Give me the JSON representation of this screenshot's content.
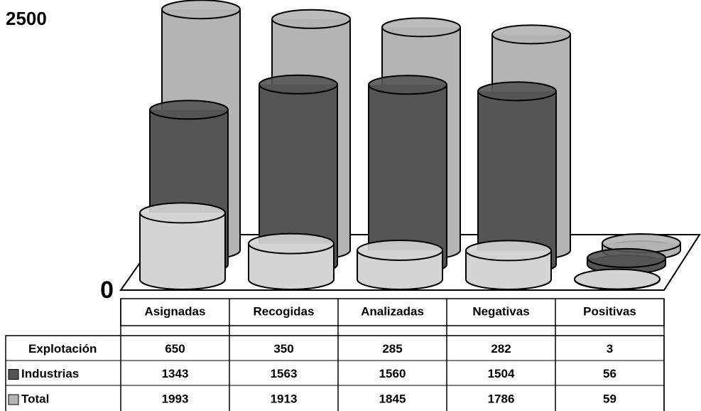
{
  "chart_data": {
    "type": "bar",
    "categories": [
      "Asignadas",
      "Recogidas",
      "Analizadas",
      "Negativas",
      "Positivas"
    ],
    "series": [
      {
        "name": "Explotación",
        "color": "#d4d4d4",
        "values": [
          650,
          350,
          285,
          282,
          3
        ]
      },
      {
        "name": "Industrias",
        "color": "#555555",
        "values": [
          1343,
          1563,
          1560,
          1504,
          56
        ]
      },
      {
        "name": "Total",
        "color": "#b4b4b4",
        "values": [
          1993,
          1913,
          1845,
          1786,
          59
        ]
      }
    ],
    "ylim": [
      0,
      2500
    ],
    "yticks": [
      0,
      2500
    ]
  }
}
